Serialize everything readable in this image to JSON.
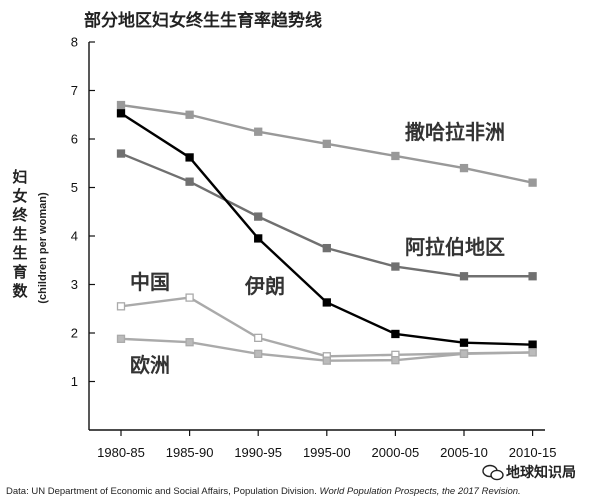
{
  "chart_data": {
    "type": "line",
    "title": "部分地区妇女终生生育率趋势线",
    "ylabel_cn": "妇女终生生育数",
    "ylabel_en": "(children per woman)",
    "xlabel": "",
    "categories": [
      "1980-85",
      "1985-90",
      "1990-95",
      "1995-00",
      "2000-05",
      "2005-10",
      "2010-15"
    ],
    "ylim": [
      0,
      8
    ],
    "yticks": [
      1,
      2,
      3,
      4,
      5,
      6,
      7,
      8
    ],
    "grid": false,
    "series": [
      {
        "name": "撒哈拉非洲",
        "color": "#999999",
        "fill": "#999999",
        "values": [
          6.7,
          6.5,
          6.15,
          5.9,
          5.65,
          5.4,
          5.1
        ]
      },
      {
        "name": "阿拉伯地区",
        "color": "#707070",
        "fill": "#707070",
        "values": [
          5.7,
          5.12,
          4.4,
          3.75,
          3.37,
          3.17,
          3.17
        ]
      },
      {
        "name": "伊朗",
        "color": "#000000",
        "fill": "#000000",
        "values": [
          6.53,
          5.62,
          3.95,
          2.63,
          1.98,
          1.8,
          1.76
        ]
      },
      {
        "name": "中国",
        "color": "#aaaaaa",
        "fill": "#ffffff",
        "values": [
          2.55,
          2.73,
          1.9,
          1.52,
          1.55,
          1.58,
          1.6
        ]
      },
      {
        "name": "欧洲",
        "color": "#aaaaaa",
        "fill": "#bbbbbb",
        "values": [
          1.88,
          1.81,
          1.57,
          1.43,
          1.44,
          1.57,
          1.6
        ]
      }
    ],
    "source_prefix": "Data: UN Department of Economic and Social Affairs, Population Division. ",
    "source_italic": "World Population Prospects, the 2017 Revision."
  },
  "watermark": {
    "icon": "wechat-icon",
    "text": "地球知识局"
  }
}
